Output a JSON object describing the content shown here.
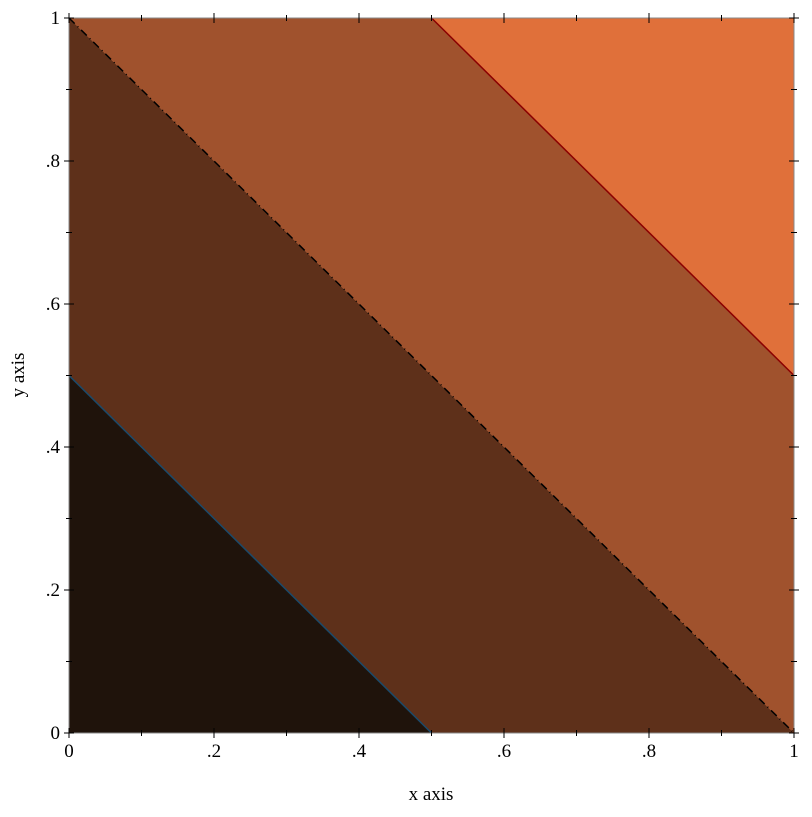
{
  "chart_data": {
    "type": "contour-intervals",
    "function": "x + y",
    "xlabel": "x axis",
    "ylabel": "y axis",
    "xlim": [
      0,
      1
    ],
    "ylim": [
      0,
      1
    ],
    "x_ticks": [
      {
        "value": 0,
        "label": "0"
      },
      {
        "value": 0.2,
        "label": ".2"
      },
      {
        "value": 0.4,
        "label": ".4"
      },
      {
        "value": 0.6,
        "label": ".6"
      },
      {
        "value": 0.8,
        "label": ".8"
      },
      {
        "value": 1,
        "label": "1"
      }
    ],
    "y_ticks": [
      {
        "value": 0,
        "label": "0"
      },
      {
        "value": 0.2,
        "label": ".2"
      },
      {
        "value": 0.4,
        "label": ".4"
      },
      {
        "value": 0.6,
        "label": ".6"
      },
      {
        "value": 0.8,
        "label": ".8"
      },
      {
        "value": 1,
        "label": "1"
      }
    ],
    "minor_tick_step": 0.1,
    "intervals": [
      {
        "from": 0,
        "to": 0.5,
        "color": "#1f130b"
      },
      {
        "from": 0.5,
        "to": 1.0,
        "color": "#5e301a"
      },
      {
        "from": 1.0,
        "to": 1.5,
        "color": "#a0522d"
      },
      {
        "from": 1.5,
        "to": 2.0,
        "color": "#e0703a"
      }
    ],
    "contours": [
      {
        "level": 0.5,
        "color": "#1b4a6b",
        "style": "solid"
      },
      {
        "level": 1.0,
        "color": "#000000",
        "style": "dash-dot"
      },
      {
        "level": 1.5,
        "color": "#8b0000",
        "style": "solid"
      }
    ],
    "grid": false
  }
}
